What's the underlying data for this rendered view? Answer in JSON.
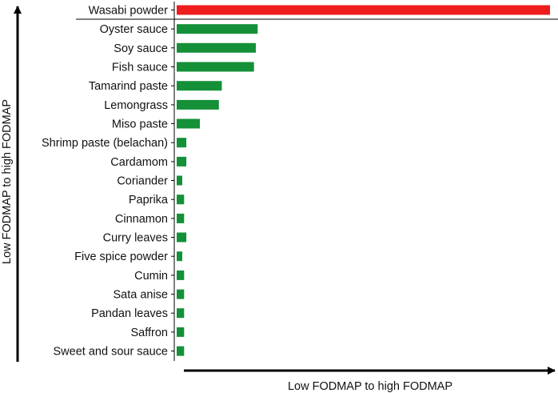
{
  "chart_data": {
    "type": "bar",
    "orientation": "horizontal",
    "categories": [
      "Wasabi powder",
      "Oyster sauce",
      "Soy sauce",
      "Fish sauce",
      "Tamarind paste",
      "Lemongrass",
      "Miso paste",
      "Shrimp paste (belachan)",
      "Cardamom",
      "Coriander",
      "Paprika",
      "Cinnamon",
      "Curry leaves",
      "Five spice powder",
      "Cumin",
      "Sata anise",
      "Pandan leaves",
      "Saffron",
      "Sweet and sour sauce"
    ],
    "values": [
      100,
      21.7,
      21.2,
      20.7,
      12.1,
      11.3,
      6.2,
      2.6,
      2.6,
      1.5,
      2.0,
      2.0,
      2.6,
      1.5,
      2.0,
      2.0,
      2.0,
      2.0,
      2.0
    ],
    "colors": [
      "#ee1c1c",
      "#149038",
      "#149038",
      "#149038",
      "#149038",
      "#149038",
      "#149038",
      "#149038",
      "#149038",
      "#149038",
      "#149038",
      "#149038",
      "#149038",
      "#149038",
      "#149038",
      "#149038",
      "#149038",
      "#149038",
      "#149038"
    ],
    "xlabel": "Low  FODMAP to high FODMAP",
    "ylabel": "Low FODMAP to high FODMAP",
    "xlim": [
      0,
      100
    ],
    "separator_after_index": 0,
    "grid": false,
    "legend": "none"
  }
}
